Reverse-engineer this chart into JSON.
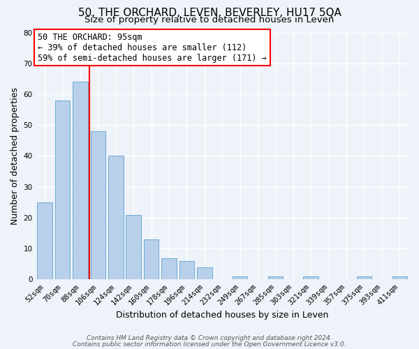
{
  "title": "50, THE ORCHARD, LEVEN, BEVERLEY, HU17 5QA",
  "subtitle": "Size of property relative to detached houses in Leven",
  "xlabel": "Distribution of detached houses by size in Leven",
  "ylabel": "Number of detached properties",
  "bar_values": [
    25,
    58,
    64,
    48,
    40,
    21,
    13,
    7,
    6,
    4,
    0,
    1,
    0,
    1,
    0,
    1,
    0,
    0,
    1,
    0,
    1
  ],
  "bar_labels": [
    "52sqm",
    "70sqm",
    "88sqm",
    "106sqm",
    "124sqm",
    "142sqm",
    "160sqm",
    "178sqm",
    "196sqm",
    "214sqm",
    "232sqm",
    "249sqm",
    "267sqm",
    "285sqm",
    "303sqm",
    "321sqm",
    "339sqm",
    "357sqm",
    "375sqm",
    "393sqm",
    "411sqm"
  ],
  "bar_color": "#b8d0ea",
  "bar_edge_color": "#6aaad4",
  "redline_x": 2.5,
  "ylim": [
    0,
    80
  ],
  "yticks": [
    0,
    10,
    20,
    30,
    40,
    50,
    60,
    70,
    80
  ],
  "annotation_box_text": "50 THE ORCHARD: 95sqm\n← 39% of detached houses are smaller (112)\n59% of semi-detached houses are larger (171) →",
  "footer_line1": "Contains HM Land Registry data © Crown copyright and database right 2024.",
  "footer_line2": "Contains public sector information licensed under the Open Government Licence v3.0.",
  "background_color": "#eef2f9",
  "grid_color": "#ffffff",
  "title_fontsize": 11,
  "subtitle_fontsize": 9.5,
  "axis_label_fontsize": 9,
  "tick_fontsize": 7.5,
  "annotation_fontsize": 8.5,
  "footer_fontsize": 6.5
}
